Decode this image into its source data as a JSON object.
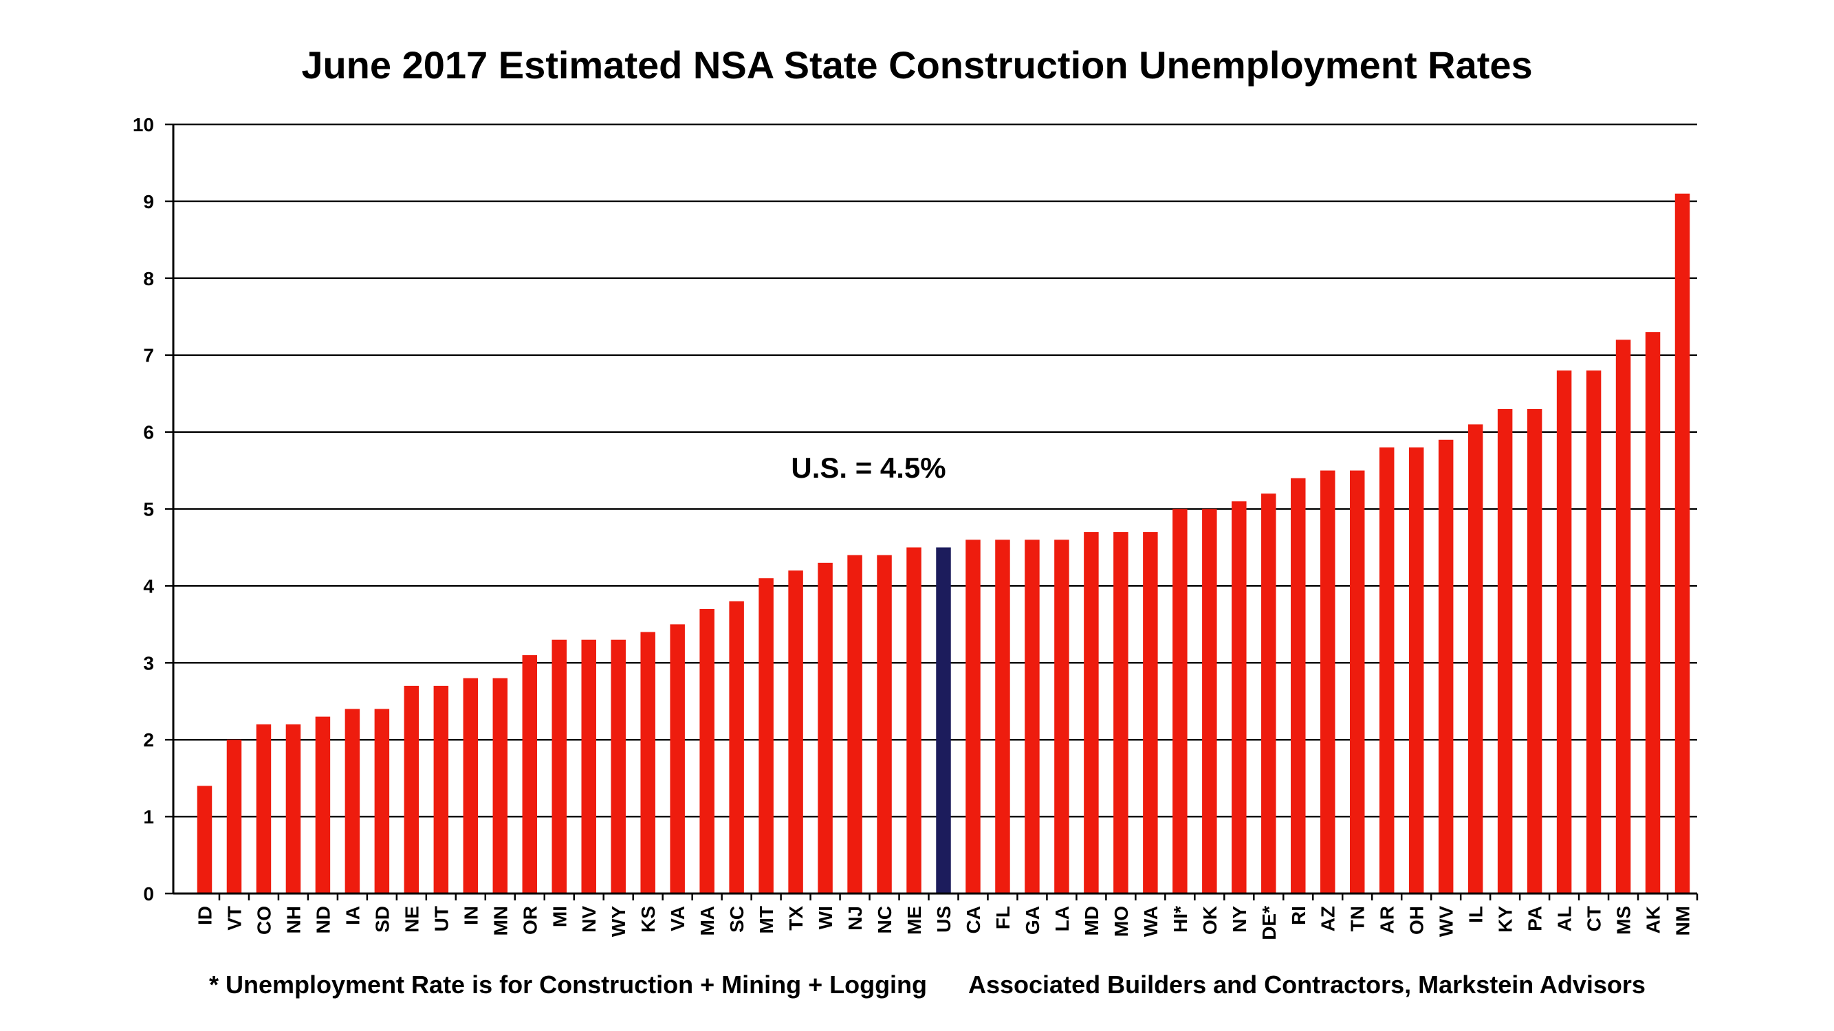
{
  "chart_data": {
    "type": "bar",
    "title": "June 2017 Estimated NSA State Construction Unemployment Rates",
    "categories": [
      "ID",
      "VT",
      "CO",
      "NH",
      "ND",
      "IA",
      "SD",
      "NE",
      "UT",
      "IN",
      "MN",
      "OR",
      "MI",
      "NV",
      "WY",
      "KS",
      "VA",
      "MA",
      "SC",
      "MT",
      "TX",
      "WI",
      "NJ",
      "NC",
      "ME",
      "US",
      "CA",
      "FL",
      "GA",
      "LA",
      "MD",
      "MO",
      "WA",
      "HI*",
      "OK",
      "NY",
      "DE*",
      "RI",
      "AZ",
      "TN",
      "AR",
      "OH",
      "WV",
      "IL",
      "KY",
      "PA",
      "AL",
      "CT",
      "MS",
      "AK",
      "NM"
    ],
    "values": [
      1.4,
      2.0,
      2.2,
      2.2,
      2.3,
      2.4,
      2.4,
      2.7,
      2.7,
      2.8,
      2.8,
      3.1,
      3.3,
      3.3,
      3.3,
      3.4,
      3.5,
      3.7,
      3.8,
      4.1,
      4.2,
      4.3,
      4.4,
      4.4,
      4.5,
      4.5,
      4.6,
      4.6,
      4.6,
      4.6,
      4.7,
      4.7,
      4.7,
      5.0,
      5.0,
      5.1,
      5.2,
      5.4,
      5.5,
      5.5,
      5.8,
      5.8,
      5.9,
      6.1,
      6.3,
      6.3,
      6.8,
      6.8,
      7.2,
      7.3,
      9.1
    ],
    "highlight_category": "US",
    "ylim": [
      0,
      10
    ],
    "yticks": [
      0,
      1,
      2,
      3,
      4,
      5,
      6,
      7,
      8,
      9,
      10
    ],
    "grid": true,
    "annotation": "U.S. = 4.5%",
    "colors": {
      "bar": "#ee1c0e",
      "highlight": "#1c1c5c",
      "grid": "#000000"
    }
  },
  "footnotes": {
    "left": "* Unemployment Rate is for Construction + Mining + Logging",
    "right": "Associated Builders and Contractors, Markstein Advisors"
  }
}
